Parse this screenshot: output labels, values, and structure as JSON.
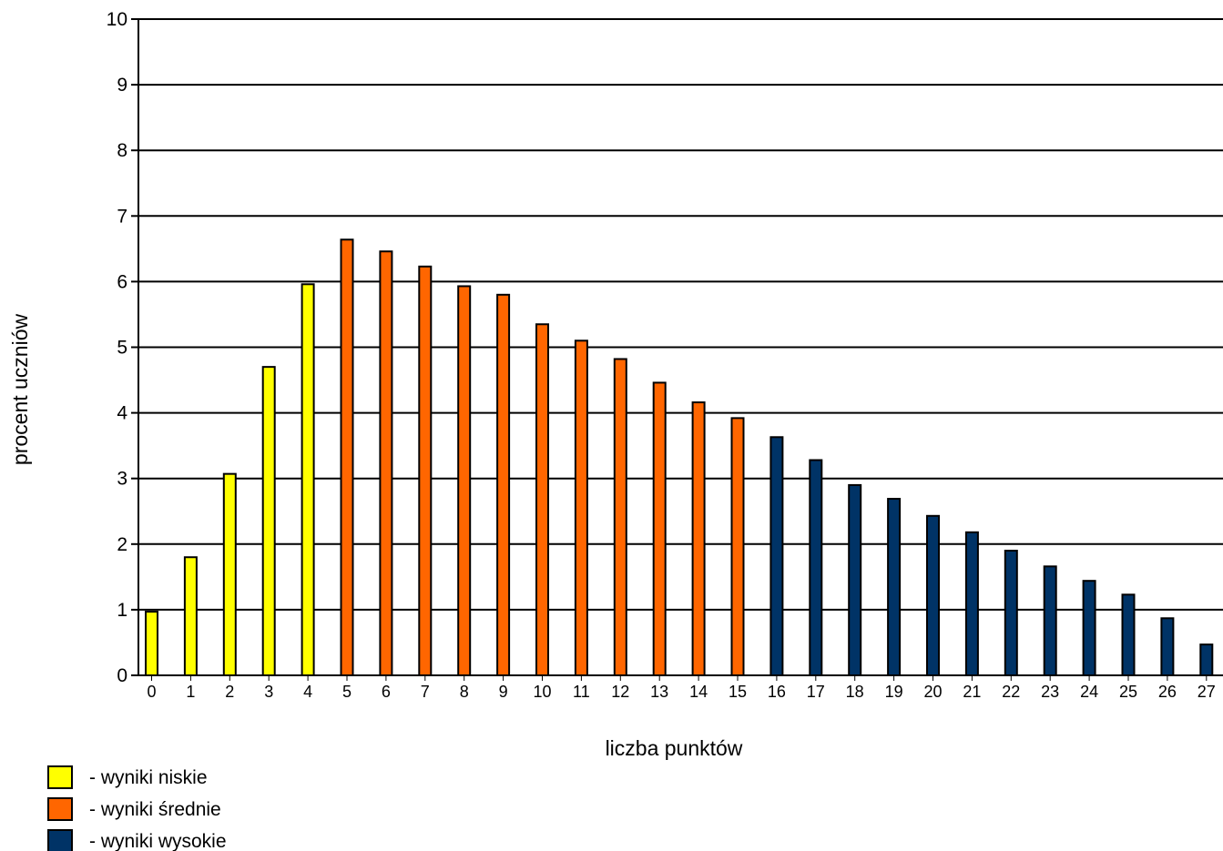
{
  "chart_data": {
    "type": "bar",
    "xlabel": "liczba punktów",
    "ylabel": "procent uczniów",
    "ylim": [
      0,
      10
    ],
    "yticks": [
      "0",
      "1",
      "2",
      "3",
      "4",
      "5",
      "6",
      "7",
      "8",
      "9",
      "10"
    ],
    "grid": true,
    "categories": [
      "0",
      "1",
      "2",
      "3",
      "4",
      "5",
      "6",
      "7",
      "8",
      "9",
      "10",
      "11",
      "12",
      "13",
      "14",
      "15",
      "16",
      "17",
      "18",
      "19",
      "20",
      "21",
      "22",
      "23",
      "24",
      "25",
      "26",
      "27"
    ],
    "values": [
      0.97,
      1.8,
      3.07,
      4.7,
      5.96,
      6.64,
      6.46,
      6.23,
      5.93,
      5.8,
      5.35,
      5.1,
      4.82,
      4.46,
      4.16,
      3.92,
      3.63,
      3.28,
      2.9,
      2.69,
      2.43,
      2.18,
      1.9,
      1.66,
      1.44,
      1.23,
      0.87,
      0.47
    ],
    "groups": [
      "low",
      "low",
      "low",
      "low",
      "low",
      "mid",
      "mid",
      "mid",
      "mid",
      "mid",
      "mid",
      "mid",
      "mid",
      "mid",
      "mid",
      "mid",
      "high",
      "high",
      "high",
      "high",
      "high",
      "high",
      "high",
      "high",
      "high",
      "high",
      "high",
      "high"
    ],
    "legend": {
      "placement": "bottom-left",
      "items": [
        {
          "key": "low",
          "label": "- wyniki niskie",
          "color": "#ffff00"
        },
        {
          "key": "mid",
          "label": "- wyniki średnie",
          "color": "#ff6600"
        },
        {
          "key": "high",
          "label": "- wyniki wysokie",
          "color": "#003366"
        }
      ]
    }
  }
}
